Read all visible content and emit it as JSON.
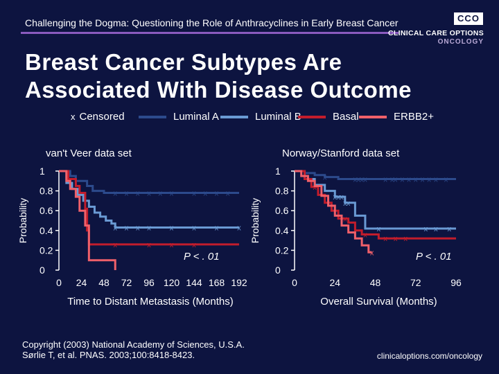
{
  "header": {
    "text": "Challenging the Dogma: Questioning the Role of Anthracyclines in Early Breast Cancer",
    "logo_box": "CCO",
    "logo_line1": "CLINICAL CARE OPTIONS",
    "logo_line2": "ONCOLOGY"
  },
  "title": {
    "line1": "Breast Cancer Subtypes Are",
    "line2": "Associated With Disease Outcome"
  },
  "legend": {
    "censored_symbol": "x",
    "censored_label": "Censored",
    "items": [
      {
        "label": "Luminal A",
        "color": "#2c4a8c"
      },
      {
        "label": "Luminal B",
        "color": "#6a9ad4"
      },
      {
        "label": "Basal",
        "color": "#c21d2c"
      },
      {
        "label": "ERBB2+",
        "color": "#f0606a"
      }
    ]
  },
  "footer": {
    "copyright_line1": "Copyright (2003) National Academy of Sciences, U.S.A.",
    "copyright_line2": "Sørlie T, et al. PNAS. 2003;100:8418-8423.",
    "url": "clinicaloptions.com/oncology"
  },
  "chart_data": [
    {
      "type": "line",
      "subtitle": "van't Veer data set",
      "title": "van't Veer data set",
      "xlabel": "Time to Distant Metastasis (Months)",
      "ylabel": "Probability",
      "xlim": [
        0,
        192
      ],
      "ylim": [
        0,
        1
      ],
      "x_ticks": [
        0,
        24,
        48,
        72,
        96,
        120,
        144,
        168,
        192
      ],
      "y_ticks": [
        0,
        0.2,
        0.4,
        0.6,
        0.8,
        1
      ],
      "y_tick_labels": [
        "0",
        "0.2",
        "0.4",
        "0.6",
        "0.8",
        "1"
      ],
      "annotation": "P < . 01",
      "series": [
        {
          "name": "Luminal A",
          "color": "#2c4a8c",
          "x": [
            0,
            12,
            18,
            30,
            36,
            48,
            192
          ],
          "y": [
            1,
            0.95,
            0.9,
            0.85,
            0.8,
            0.78,
            0.78
          ],
          "censored_x": [
            60,
            72,
            84,
            96,
            108,
            120,
            144,
            156,
            168,
            180
          ]
        },
        {
          "name": "Luminal B",
          "color": "#6a9ad4",
          "x": [
            0,
            8,
            14,
            20,
            26,
            32,
            38,
            44,
            50,
            56,
            60,
            192
          ],
          "y": [
            1,
            0.88,
            0.82,
            0.76,
            0.7,
            0.64,
            0.58,
            0.54,
            0.5,
            0.47,
            0.43,
            0.43
          ],
          "censored_x": [
            60,
            72,
            84,
            96,
            120,
            144,
            168,
            192
          ]
        },
        {
          "name": "Basal",
          "color": "#c21d2c",
          "x": [
            0,
            10,
            18,
            22,
            28,
            30,
            32,
            192
          ],
          "y": [
            1,
            0.92,
            0.85,
            0.78,
            0.62,
            0.4,
            0.26,
            0.26
          ],
          "censored_x": [
            60,
            96,
            120,
            144
          ]
        },
        {
          "name": "ERBB2+",
          "color": "#f0606a",
          "x": [
            0,
            8,
            12,
            18,
            22,
            28,
            32,
            48,
            60,
            60
          ],
          "y": [
            1,
            0.9,
            0.82,
            0.74,
            0.6,
            0.45,
            0.1,
            0.1,
            0.1,
            0
          ],
          "censored_x": []
        }
      ]
    },
    {
      "type": "line",
      "subtitle": "Norway/Stanford data set",
      "title": "Norway/Stanford data set",
      "xlabel": "Overall Survival (Months)",
      "ylabel": "Probability",
      "xlim": [
        0,
        96
      ],
      "ylim": [
        0,
        1
      ],
      "x_ticks": [
        0,
        24,
        48,
        72,
        96
      ],
      "y_ticks": [
        0,
        0.2,
        0.4,
        0.6,
        0.8,
        1
      ],
      "y_tick_labels": [
        "0",
        "0.2",
        "0.4",
        "0.6",
        "0.8",
        "1"
      ],
      "annotation": "P < . 01",
      "series": [
        {
          "name": "Luminal A",
          "color": "#2c4a8c",
          "x": [
            0,
            6,
            12,
            18,
            26,
            96
          ],
          "y": [
            1,
            0.98,
            0.96,
            0.94,
            0.92,
            0.92
          ],
          "censored_x": [
            18,
            36,
            38,
            40,
            42,
            54,
            58,
            60,
            64,
            68,
            72,
            76,
            80,
            84,
            90
          ]
        },
        {
          "name": "Luminal B",
          "color": "#6a9ad4",
          "x": [
            0,
            6,
            12,
            18,
            24,
            30,
            36,
            42,
            96
          ],
          "y": [
            1,
            0.92,
            0.86,
            0.8,
            0.74,
            0.68,
            0.55,
            0.42,
            0.42
          ],
          "censored_x": [
            24,
            26,
            28,
            30,
            32,
            50,
            78,
            84,
            92
          ]
        },
        {
          "name": "Basal",
          "color": "#c21d2c",
          "x": [
            0,
            6,
            10,
            14,
            18,
            22,
            26,
            32,
            36,
            40,
            50,
            96
          ],
          "y": [
            1,
            0.92,
            0.84,
            0.76,
            0.68,
            0.6,
            0.52,
            0.48,
            0.4,
            0.36,
            0.32,
            0.32
          ],
          "censored_x": [
            12,
            30,
            42,
            54,
            60,
            66
          ]
        },
        {
          "name": "ERBB2+",
          "color": "#f0606a",
          "x": [
            0,
            4,
            8,
            12,
            16,
            20,
            24,
            28,
            32,
            36,
            40,
            44,
            46
          ],
          "y": [
            1,
            0.95,
            0.9,
            0.85,
            0.75,
            0.65,
            0.55,
            0.45,
            0.38,
            0.32,
            0.25,
            0.18,
            0.18
          ],
          "censored_x": [
            46
          ]
        }
      ]
    }
  ]
}
